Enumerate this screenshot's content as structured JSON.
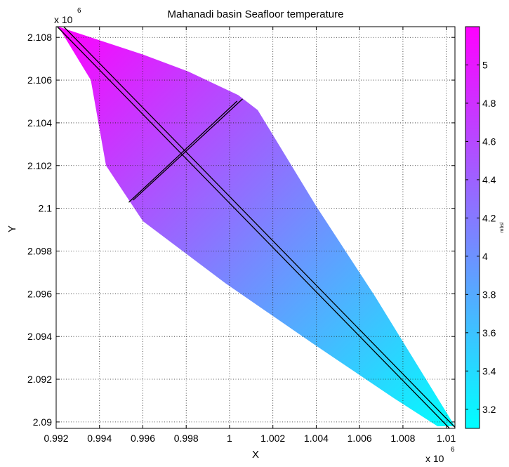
{
  "chart_data": {
    "type": "heatmap",
    "title": "Mahanadi basin Seafloor temperature",
    "xlabel": "X",
    "ylabel": "Y",
    "x_exponent_label": "x 10",
    "x_exponent_power": "6",
    "y_exponent_label": "x 10",
    "y_exponent_power": "6",
    "xlim": [
      0.992,
      1.0104
    ],
    "ylim": [
      2.0897,
      2.1085
    ],
    "x_ticks": [
      "0.992",
      "0.994",
      "0.996",
      "0.998",
      "1",
      "1.002",
      "1.004",
      "1.006",
      "1.008",
      "1.01"
    ],
    "y_ticks": [
      "2.09",
      "2.092",
      "2.094",
      "2.096",
      "2.098",
      "2.1",
      "2.102",
      "2.104",
      "2.106",
      "2.108"
    ],
    "grid": true,
    "region_outline_xy": [
      [
        0.9921,
        2.1085
      ],
      [
        0.996,
        2.1072
      ],
      [
        0.9981,
        2.1064
      ],
      [
        1.0004,
        2.1053
      ],
      [
        1.0013,
        2.1046
      ],
      [
        1.004,
        2.1001
      ],
      [
        1.0067,
        2.0959
      ],
      [
        1.0104,
        2.0898
      ],
      [
        1.0096,
        2.0898
      ],
      [
        1.0076,
        2.0911
      ],
      [
        1.0038,
        2.0937
      ],
      [
        0.9998,
        2.0965
      ],
      [
        0.996,
        2.0994
      ],
      [
        0.9943,
        2.102
      ],
      [
        0.9936,
        2.106
      ],
      [
        0.9921,
        2.1085
      ]
    ],
    "field": {
      "variable": "Seafloor temperature",
      "max_value": 5.2,
      "max_at": [
        0.9921,
        2.1085
      ],
      "min_value": 3.1,
      "min_at": [
        1.0104,
        2.0897
      ]
    },
    "profile_lines": [
      {
        "from": [
          0.99205,
          2.1085
        ],
        "to": [
          1.01015,
          2.0897
        ]
      },
      {
        "from": [
          0.99235,
          2.1085
        ],
        "to": [
          1.01045,
          2.0897
        ]
      },
      {
        "from": [
          0.99535,
          2.10028
        ],
        "to": [
          1.00035,
          2.10502
        ]
      },
      {
        "from": [
          0.99555,
          2.10038
        ],
        "to": [
          1.0006,
          2.10512
        ]
      }
    ],
    "colorbar": {
      "min": 3.1,
      "max": 5.2,
      "colormap": "cool",
      "color_low": "#00ffff",
      "color_high": "#ff00ff",
      "ticks": [
        "3.2",
        "3.4",
        "3.6",
        "3.8",
        "4",
        "4.2",
        "4.4",
        "4.6",
        "4.8",
        "5"
      ],
      "tick_values": [
        3.2,
        3.4,
        3.6,
        3.8,
        4.0,
        4.2,
        4.4,
        4.6,
        4.8,
        5.0
      ],
      "unit": "mbsl"
    }
  }
}
